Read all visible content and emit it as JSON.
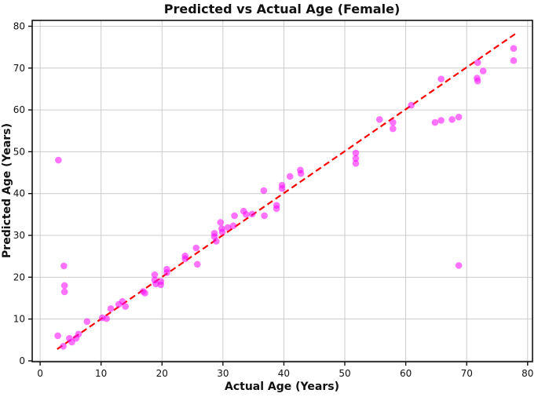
{
  "figure": {
    "background": "#ffffff"
  },
  "chart_data": {
    "type": "scatter",
    "title": "Predicted vs Actual Age (Female)",
    "xlabel": "Actual Age (Years)",
    "ylabel": "Predicted Age (Years)",
    "xlim": [
      -1.3,
      80.8
    ],
    "ylim": [
      -0.2,
      81.4
    ],
    "x_ticks": [
      0,
      10,
      20,
      30,
      40,
      50,
      60,
      70,
      80
    ],
    "y_ticks": [
      0,
      10,
      20,
      30,
      40,
      50,
      60,
      70,
      80
    ],
    "grid": true,
    "grid_color": "#cccccc",
    "point_color": "#ff00ff",
    "point_opacity": 0.55,
    "point_radius": 4.3,
    "identity_line": {
      "style": "dashed",
      "color": "#ff0000",
      "from": [
        2.8,
        2.8
      ],
      "to": [
        78.2,
        78.4
      ]
    },
    "points": [
      [
        2.9,
        6.0
      ],
      [
        3.0,
        48.0
      ],
      [
        3.8,
        3.5
      ],
      [
        3.9,
        22.7
      ],
      [
        4.0,
        18.0
      ],
      [
        4.0,
        16.5
      ],
      [
        4.8,
        5.4
      ],
      [
        5.2,
        4.5
      ],
      [
        5.9,
        5.4
      ],
      [
        6.3,
        6.4
      ],
      [
        7.7,
        9.4
      ],
      [
        10.2,
        10.3
      ],
      [
        10.9,
        10.1
      ],
      [
        11.6,
        12.5
      ],
      [
        12.9,
        13.5
      ],
      [
        13.5,
        14.2
      ],
      [
        14.0,
        13.0
      ],
      [
        16.9,
        16.6
      ],
      [
        17.2,
        16.2
      ],
      [
        18.8,
        20.6
      ],
      [
        18.8,
        19.3
      ],
      [
        19.0,
        18.4
      ],
      [
        19.8,
        19.0
      ],
      [
        19.8,
        18.2
      ],
      [
        20.8,
        21.9
      ],
      [
        20.8,
        21.1
      ],
      [
        23.8,
        25.1
      ],
      [
        23.8,
        24.4
      ],
      [
        25.6,
        27.0
      ],
      [
        25.8,
        23.1
      ],
      [
        28.6,
        30.5
      ],
      [
        28.6,
        29.7
      ],
      [
        28.9,
        28.6
      ],
      [
        29.6,
        33.1
      ],
      [
        29.8,
        31.6
      ],
      [
        29.9,
        30.8
      ],
      [
        30.8,
        31.9
      ],
      [
        31.7,
        32.3
      ],
      [
        31.9,
        34.7
      ],
      [
        33.4,
        35.8
      ],
      [
        33.8,
        35.0
      ],
      [
        34.8,
        35.1
      ],
      [
        36.7,
        40.7
      ],
      [
        36.8,
        34.7
      ],
      [
        38.8,
        37.2
      ],
      [
        38.8,
        36.4
      ],
      [
        39.7,
        42.0
      ],
      [
        39.7,
        41.2
      ],
      [
        41.0,
        44.1
      ],
      [
        42.7,
        45.6
      ],
      [
        42.8,
        44.8
      ],
      [
        51.8,
        49.7
      ],
      [
        51.8,
        48.4
      ],
      [
        51.8,
        47.2
      ],
      [
        55.7,
        57.7
      ],
      [
        57.9,
        57.0
      ],
      [
        57.9,
        55.5
      ],
      [
        60.9,
        61.1
      ],
      [
        64.8,
        57.0
      ],
      [
        65.8,
        57.5
      ],
      [
        65.8,
        67.4
      ],
      [
        67.6,
        57.7
      ],
      [
        68.7,
        58.3
      ],
      [
        68.7,
        22.8
      ],
      [
        71.8,
        71.3
      ],
      [
        71.7,
        67.6
      ],
      [
        71.8,
        66.9
      ],
      [
        72.7,
        69.3
      ],
      [
        77.7,
        74.7
      ],
      [
        77.7,
        71.8
      ]
    ]
  }
}
